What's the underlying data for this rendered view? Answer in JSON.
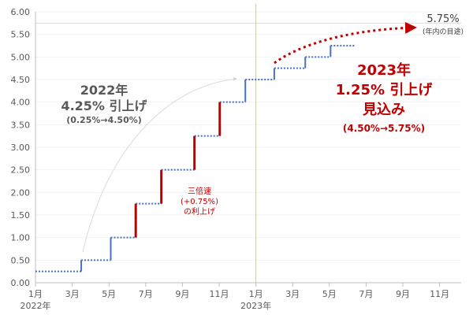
{
  "chart_data": {
    "type": "line",
    "ylim": [
      0,
      6
    ],
    "y_ticks": [
      "0.00",
      "0.50",
      "1.00",
      "1.50",
      "2.00",
      "2.50",
      "3.00",
      "3.50",
      "4.00",
      "4.50",
      "5.00",
      "5.50",
      "6.00"
    ],
    "x_ticks": [
      {
        "label": "1月",
        "sub": "2022年"
      },
      {
        "label": "3月",
        "sub": ""
      },
      {
        "label": "5月",
        "sub": ""
      },
      {
        "label": "7月",
        "sub": ""
      },
      {
        "label": "9月",
        "sub": ""
      },
      {
        "label": "11月",
        "sub": ""
      },
      {
        "label": "1月",
        "sub": "2023年"
      },
      {
        "label": "3月",
        "sub": ""
      },
      {
        "label": "5月",
        "sub": ""
      },
      {
        "label": "7月",
        "sub": ""
      },
      {
        "label": "9月",
        "sub": ""
      },
      {
        "label": "11月",
        "sub": ""
      }
    ],
    "grid": true,
    "rate_levels": [
      {
        "from": "2022-01-01",
        "to": "2022-03-16",
        "rate": 0.25
      },
      {
        "from": "2022-03-16",
        "to": "2022-05-04",
        "rate": 0.5
      },
      {
        "from": "2022-05-04",
        "to": "2022-06-15",
        "rate": 1.0
      },
      {
        "from": "2022-06-15",
        "to": "2022-07-27",
        "rate": 1.75
      },
      {
        "from": "2022-07-27",
        "to": "2022-09-21",
        "rate": 2.5
      },
      {
        "from": "2022-09-21",
        "to": "2022-11-02",
        "rate": 3.25
      },
      {
        "from": "2022-11-02",
        "to": "2022-12-14",
        "rate": 4.0
      },
      {
        "from": "2022-12-14",
        "to": "2023-02-01",
        "rate": 4.5
      },
      {
        "from": "2023-02-01",
        "to": "2023-03-22",
        "rate": 4.75
      },
      {
        "from": "2023-03-22",
        "to": "2023-05-03",
        "rate": 5.0
      },
      {
        "from": "2023-05-03",
        "to": "2023-06-14",
        "rate": 5.25
      }
    ],
    "hikes": [
      {
        "date": "2022-03-16",
        "from": 0.25,
        "to": 0.5,
        "size": "normal"
      },
      {
        "date": "2022-05-04",
        "from": 0.5,
        "to": 1.0,
        "size": "normal"
      },
      {
        "date": "2022-06-15",
        "from": 1.0,
        "to": 1.75,
        "size": "large"
      },
      {
        "date": "2022-07-27",
        "from": 1.75,
        "to": 2.5,
        "size": "large"
      },
      {
        "date": "2022-09-21",
        "from": 2.5,
        "to": 3.25,
        "size": "large"
      },
      {
        "date": "2022-11-02",
        "from": 3.25,
        "to": 4.0,
        "size": "large"
      },
      {
        "date": "2022-12-14",
        "from": 4.0,
        "to": 4.5,
        "size": "normal"
      },
      {
        "date": "2023-02-01",
        "from": 4.5,
        "to": 4.75,
        "size": "normal"
      },
      {
        "date": "2023-03-22",
        "from": 4.75,
        "to": 5.0,
        "size": "normal"
      },
      {
        "date": "2023-05-03",
        "from": 5.0,
        "to": 5.25,
        "size": "normal"
      }
    ],
    "target_level": 5.75,
    "year_divider_date": "2023-01-01",
    "colors": {
      "step": "#4472c4",
      "large_hike": "#c00000",
      "projection": "#c00000",
      "divider": "#c9c9a8",
      "target_line": "#d9d9d9",
      "grid": "#f2f2f2",
      "axis": "#bfbfbf"
    },
    "annotations": {
      "y2022_title": "2022年",
      "y2022_line2": "4.25% 引上げ",
      "y2022_line3": "(0.25%→4.50%)",
      "triple_line1": "三倍速",
      "triple_line2": "(+0.75%)",
      "triple_line3": "の利上げ",
      "y2023_title": "2023年",
      "y2023_line2": "1.25% 引上げ",
      "y2023_line3": "見込み",
      "y2023_line4": "(4.50%→5.75%)",
      "target_value": "5.75%",
      "target_note": "(年内の目途)"
    }
  }
}
